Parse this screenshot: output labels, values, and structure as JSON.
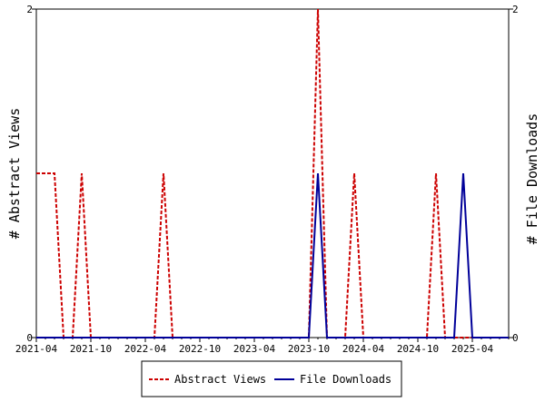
{
  "chart_data": {
    "type": "line",
    "x_tick_labels": [
      "2021-04",
      "2021-10",
      "2022-04",
      "2022-10",
      "2023-04",
      "2023-10",
      "2024-04",
      "2024-10",
      "2025-04"
    ],
    "xlim": [
      "2021-04",
      "2025-08"
    ],
    "y_left": {
      "label": "# Abstract Views",
      "ylim": [
        0,
        2
      ],
      "ticks": [
        "0",
        "2"
      ]
    },
    "y_right": {
      "label": "# File Downloads",
      "ylim": [
        0,
        2
      ],
      "ticks": [
        "0",
        "2"
      ]
    },
    "grid": false,
    "legend_position": "bottom",
    "series": [
      {
        "name": "Abstract Views",
        "axis": "left",
        "color": "#cc0000",
        "style": "dashed",
        "x": [
          "2021-04",
          "2021-05",
          "2021-06",
          "2021-07",
          "2021-08",
          "2021-09",
          "2021-10",
          "2021-11",
          "2021-12",
          "2022-01",
          "2022-02",
          "2022-03",
          "2022-04",
          "2022-05",
          "2022-06",
          "2022-07",
          "2022-08",
          "2022-09",
          "2022-10",
          "2022-11",
          "2022-12",
          "2023-01",
          "2023-02",
          "2023-03",
          "2023-04",
          "2023-05",
          "2023-06",
          "2023-07",
          "2023-08",
          "2023-09",
          "2023-10",
          "2023-11",
          "2023-12",
          "2024-01",
          "2024-02",
          "2024-03",
          "2024-04",
          "2024-05",
          "2024-06",
          "2024-07",
          "2024-08",
          "2024-09",
          "2024-10",
          "2024-11",
          "2024-12",
          "2025-01",
          "2025-02",
          "2025-03",
          "2025-04",
          "2025-05",
          "2025-06",
          "2025-07",
          "2025-08"
        ],
        "values": [
          1,
          1,
          1,
          0,
          0,
          1,
          0,
          0,
          0,
          0,
          0,
          0,
          0,
          0,
          1,
          0,
          0,
          0,
          0,
          0,
          0,
          0,
          0,
          0,
          0,
          0,
          0,
          0,
          0,
          0,
          0,
          2,
          0,
          0,
          0,
          1,
          0,
          0,
          0,
          0,
          0,
          0,
          0,
          0,
          1,
          0,
          0,
          0,
          0,
          0,
          0,
          0,
          0
        ]
      },
      {
        "name": "File Downloads",
        "axis": "right",
        "color": "#000099",
        "style": "solid",
        "x": [
          "2021-04",
          "2021-05",
          "2021-06",
          "2021-07",
          "2021-08",
          "2021-09",
          "2021-10",
          "2021-11",
          "2021-12",
          "2022-01",
          "2022-02",
          "2022-03",
          "2022-04",
          "2022-05",
          "2022-06",
          "2022-07",
          "2022-08",
          "2022-09",
          "2022-10",
          "2022-11",
          "2022-12",
          "2023-01",
          "2023-02",
          "2023-03",
          "2023-04",
          "2023-05",
          "2023-06",
          "2023-07",
          "2023-08",
          "2023-09",
          "2023-10",
          "2023-11",
          "2023-12",
          "2024-01",
          "2024-02",
          "2024-03",
          "2024-04",
          "2024-05",
          "2024-06",
          "2024-07",
          "2024-08",
          "2024-09",
          "2024-10",
          "2024-11",
          "2024-12",
          "2025-01",
          "2025-02",
          "2025-03",
          "2025-04",
          "2025-05",
          "2025-06",
          "2025-07",
          "2025-08"
        ],
        "values": [
          0,
          0,
          0,
          0,
          0,
          0,
          0,
          0,
          0,
          0,
          0,
          0,
          0,
          0,
          0,
          0,
          0,
          0,
          0,
          0,
          0,
          0,
          0,
          0,
          0,
          0,
          0,
          0,
          0,
          0,
          0,
          1,
          0,
          0,
          0,
          0,
          0,
          0,
          0,
          0,
          0,
          0,
          0,
          0,
          0,
          0,
          0,
          1,
          0,
          0,
          0,
          0,
          0
        ]
      }
    ]
  }
}
